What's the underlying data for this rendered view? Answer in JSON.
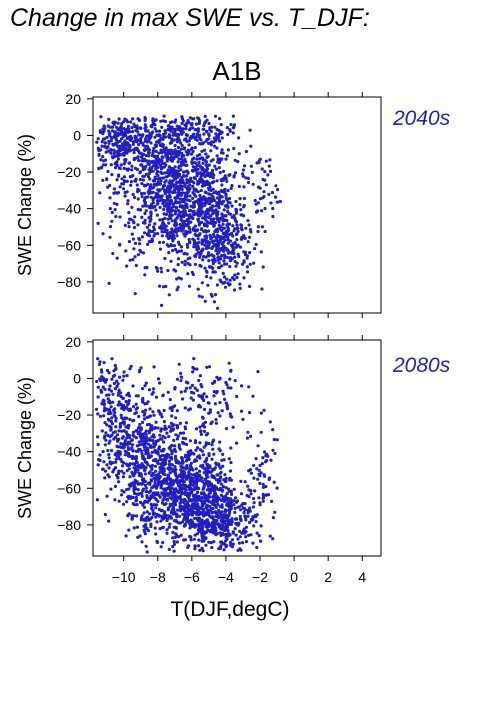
{
  "title": "Change in max SWE vs. T_DJF:",
  "scenario": "A1B",
  "colors": {
    "points": "#2020c0",
    "period_label": "#2424b0",
    "axes": "#000000"
  },
  "chart_data": [
    {
      "type": "scatter",
      "panel_label": "2040s",
      "xlabel": "T(DJF,degC)",
      "ylabel": "SWE Change (%)",
      "xlim": [
        -11.8,
        5.1
      ],
      "ylim": [
        -97,
        21
      ],
      "xticks": [
        -10,
        -8,
        -6,
        -4,
        -2,
        0,
        2,
        4
      ],
      "xtick_labels": [
        "−10",
        "−8",
        "−6",
        "−4",
        "−2",
        "0",
        "2",
        "4"
      ],
      "yticks": [
        20,
        0,
        -20,
        -40,
        -60,
        -80
      ],
      "ytick_labels": [
        "20",
        "0",
        "−20",
        "−40",
        "−60",
        "−80"
      ],
      "grid": false,
      "clusters": [
        {
          "cx": -7.0,
          "cy": -30,
          "sx": 1.7,
          "sy": 20,
          "n": 1100
        },
        {
          "cx": -10.0,
          "cy": -5,
          "sx": 1.1,
          "sy": 9,
          "n": 320
        },
        {
          "cx": -5.0,
          "cy": -45,
          "sx": 1.1,
          "sy": 18,
          "n": 380
        },
        {
          "cx": -4.0,
          "cy": -62,
          "sx": 0.8,
          "sy": 12,
          "n": 150
        },
        {
          "cx": -6.0,
          "cy": 3,
          "sx": 1.3,
          "sy": 4,
          "n": 120
        },
        {
          "cx": -1.8,
          "cy": -30,
          "sx": 0.4,
          "sy": 10,
          "n": 40
        }
      ]
    },
    {
      "type": "scatter",
      "panel_label": "2080s",
      "xlabel": "T(DJF,degC)",
      "ylabel": "SWE Change (%)",
      "xlim": [
        -11.8,
        5.1
      ],
      "ylim": [
        -97,
        21
      ],
      "xticks": [
        -10,
        -8,
        -6,
        -4,
        -2,
        0,
        2,
        4
      ],
      "xtick_labels": [
        "−10",
        "−8",
        "−6",
        "−4",
        "−2",
        "0",
        "2",
        "4"
      ],
      "yticks": [
        20,
        0,
        -20,
        -40,
        -60,
        -80
      ],
      "ytick_labels": [
        "20",
        "0",
        "−20",
        "−40",
        "−60",
        "−80"
      ],
      "grid": false,
      "clusters": [
        {
          "cx": -6.5,
          "cy": -62,
          "sx": 1.6,
          "sy": 14,
          "n": 1000
        },
        {
          "cx": -9.2,
          "cy": -38,
          "sx": 1.2,
          "sy": 16,
          "n": 450
        },
        {
          "cx": -10.8,
          "cy": -10,
          "sx": 0.8,
          "sy": 12,
          "n": 160
        },
        {
          "cx": -4.3,
          "cy": -78,
          "sx": 1.0,
          "sy": 9,
          "n": 300
        },
        {
          "cx": -5.5,
          "cy": -15,
          "sx": 1.4,
          "sy": 14,
          "n": 150
        },
        {
          "cx": -1.8,
          "cy": -55,
          "sx": 0.4,
          "sy": 18,
          "n": 60
        }
      ]
    }
  ]
}
